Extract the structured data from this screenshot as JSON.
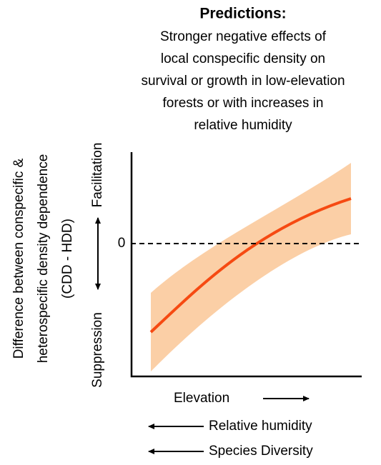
{
  "header": {
    "title": "Predictions:",
    "lines": [
      "Stronger negative effects of",
      "local conspecific density on",
      "survival or growth in low-elevation",
      "forests or with increases in",
      "relative humidity"
    ]
  },
  "y_axis": {
    "label_lines": [
      "Difference between conspecific &",
      "heterospecific density dependence",
      "(CDD - HDD)"
    ],
    "top": "Facilitation",
    "bottom": "Suppression",
    "zero": "0"
  },
  "x_axis": {
    "label": "Elevation",
    "gradients": [
      "Relative humidity",
      "Species Diversity"
    ]
  }
}
